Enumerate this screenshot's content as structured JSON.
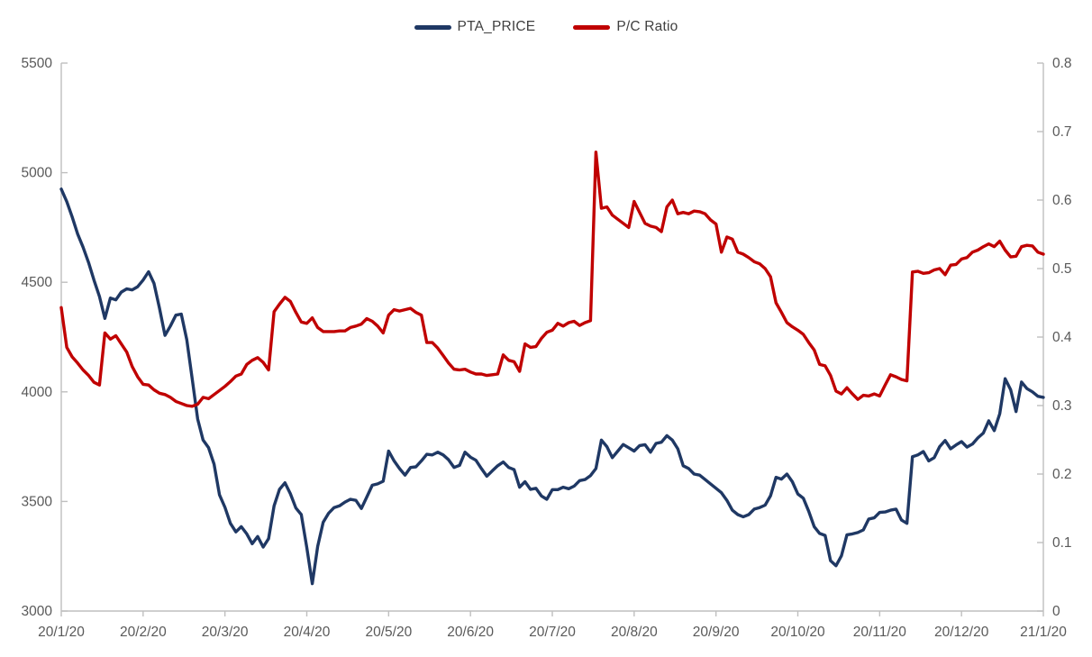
{
  "chart_data": {
    "type": "line",
    "title": "",
    "legend_position": "top",
    "grid": false,
    "axis_color": "#bfbfbf",
    "tick_label_color": "#595959",
    "x_tick_labels": [
      "20/1/20",
      "20/2/20",
      "20/3/20",
      "20/4/20",
      "20/5/20",
      "20/6/20",
      "20/7/20",
      "20/8/20",
      "20/9/20",
      "20/10/20",
      "20/11/20",
      "20/12/20",
      "21/1/20"
    ],
    "left_axis": {
      "min": 3000,
      "max": 5500,
      "tick_labels": [
        "5500",
        "5000",
        "4500",
        "4000",
        "3500",
        "3000"
      ]
    },
    "right_axis": {
      "min": 0,
      "max": 0.8,
      "tick_labels": [
        "0.8",
        "0.7",
        "0.6",
        "0.5",
        "0.4",
        "0.3",
        "0.2",
        "0.1",
        "0"
      ]
    },
    "series": [
      {
        "name": "PTA_PRICE",
        "axis": "left",
        "color": "#1f3864",
        "values": [
          4925,
          4868,
          4798,
          4720,
          4660,
          4590,
          4510,
          4435,
          4335,
          4428,
          4420,
          4455,
          4470,
          4465,
          4480,
          4510,
          4548,
          4495,
          4382,
          4258,
          4300,
          4350,
          4355,
          4238,
          4060,
          3876,
          3780,
          3745,
          3670,
          3530,
          3473,
          3400,
          3361,
          3385,
          3352,
          3307,
          3340,
          3292,
          3330,
          3480,
          3555,
          3585,
          3535,
          3470,
          3440,
          3290,
          3125,
          3295,
          3405,
          3446,
          3472,
          3480,
          3497,
          3510,
          3505,
          3468,
          3520,
          3574,
          3580,
          3592,
          3730,
          3685,
          3650,
          3620,
          3655,
          3658,
          3685,
          3715,
          3712,
          3725,
          3712,
          3690,
          3655,
          3665,
          3725,
          3702,
          3688,
          3650,
          3615,
          3640,
          3663,
          3680,
          3655,
          3645,
          3565,
          3590,
          3555,
          3560,
          3525,
          3510,
          3554,
          3554,
          3565,
          3558,
          3570,
          3595,
          3600,
          3618,
          3650,
          3780,
          3750,
          3700,
          3730,
          3760,
          3745,
          3730,
          3755,
          3759,
          3725,
          3765,
          3770,
          3800,
          3780,
          3740,
          3663,
          3650,
          3625,
          3620,
          3600,
          3580,
          3560,
          3540,
          3505,
          3460,
          3440,
          3430,
          3440,
          3465,
          3472,
          3483,
          3526,
          3610,
          3602,
          3625,
          3590,
          3534,
          3515,
          3455,
          3385,
          3354,
          3345,
          3230,
          3207,
          3252,
          3348,
          3352,
          3358,
          3370,
          3420,
          3425,
          3450,
          3452,
          3460,
          3465,
          3415,
          3400,
          3704,
          3712,
          3728,
          3685,
          3700,
          3750,
          3778,
          3740,
          3758,
          3773,
          3748,
          3762,
          3790,
          3812,
          3868,
          3823,
          3900,
          4060,
          4010,
          3910,
          4045,
          4015,
          4000,
          3980,
          3975
        ]
      },
      {
        "name": "P/C Ratio",
        "axis": "right",
        "color": "#c00000",
        "values": [
          0.443,
          0.385,
          0.371,
          0.362,
          0.352,
          0.344,
          0.334,
          0.33,
          0.406,
          0.397,
          0.402,
          0.39,
          0.378,
          0.357,
          0.342,
          0.331,
          0.33,
          0.323,
          0.318,
          0.316,
          0.312,
          0.306,
          0.303,
          0.3,
          0.299,
          0.302,
          0.312,
          0.31,
          0.316,
          0.322,
          0.328,
          0.335,
          0.343,
          0.346,
          0.36,
          0.366,
          0.37,
          0.363,
          0.352,
          0.437,
          0.448,
          0.458,
          0.452,
          0.436,
          0.422,
          0.42,
          0.428,
          0.414,
          0.408,
          0.408,
          0.408,
          0.409,
          0.409,
          0.414,
          0.416,
          0.419,
          0.427,
          0.423,
          0.416,
          0.406,
          0.432,
          0.44,
          0.438,
          0.44,
          0.442,
          0.436,
          0.432,
          0.392,
          0.392,
          0.384,
          0.373,
          0.362,
          0.353,
          0.352,
          0.353,
          0.349,
          0.346,
          0.346,
          0.344,
          0.345,
          0.346,
          0.374,
          0.366,
          0.364,
          0.35,
          0.39,
          0.385,
          0.386,
          0.398,
          0.407,
          0.41,
          0.42,
          0.416,
          0.421,
          0.423,
          0.417,
          0.421,
          0.424,
          0.67,
          0.588,
          0.59,
          0.578,
          0.572,
          0.566,
          0.56,
          0.598,
          0.582,
          0.566,
          0.562,
          0.56,
          0.554,
          0.59,
          0.6,
          0.58,
          0.582,
          0.58,
          0.584,
          0.583,
          0.58,
          0.571,
          0.565,
          0.524,
          0.546,
          0.543,
          0.524,
          0.521,
          0.516,
          0.51,
          0.507,
          0.5,
          0.488,
          0.45,
          0.436,
          0.421,
          0.415,
          0.41,
          0.404,
          0.392,
          0.381,
          0.36,
          0.358,
          0.344,
          0.321,
          0.317,
          0.326,
          0.317,
          0.309,
          0.315,
          0.314,
          0.317,
          0.314,
          0.33,
          0.345,
          0.342,
          0.338,
          0.336,
          0.495,
          0.496,
          0.493,
          0.494,
          0.498,
          0.5,
          0.491,
          0.505,
          0.506,
          0.514,
          0.516,
          0.524,
          0.527,
          0.532,
          0.536,
          0.532,
          0.54,
          0.527,
          0.517,
          0.518,
          0.532,
          0.534,
          0.533,
          0.524,
          0.521
        ]
      }
    ]
  }
}
